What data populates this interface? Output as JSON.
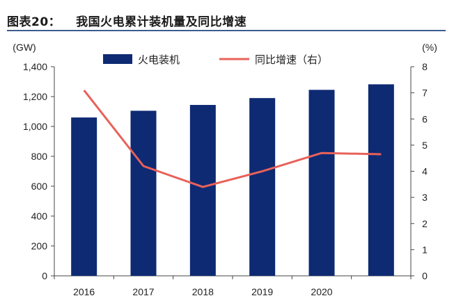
{
  "figure": {
    "label": "图表20：",
    "title": "我国火电累计装机量及同比增速"
  },
  "chart_data": {
    "type": "bar",
    "categories": [
      "2016",
      "2017",
      "2018",
      "2019",
      "2020",
      ""
    ],
    "series": [
      {
        "name": "火电装机",
        "kind": "bar",
        "axis": "left",
        "values": [
          1060,
          1105,
          1144,
          1190,
          1245,
          1282
        ]
      },
      {
        "name": "同比增速（右）",
        "kind": "line",
        "axis": "right",
        "values": [
          7.1,
          4.2,
          3.4,
          4.0,
          4.7,
          4.65
        ]
      }
    ],
    "ylabel_left": "(GW)",
    "ylabel_right": "(%)",
    "ylim_left": [
      0,
      1400
    ],
    "ylim_right": [
      0,
      8
    ],
    "yticks_left": [
      "0",
      "200",
      "400",
      "600",
      "800",
      "1,000",
      "1,200",
      "1,400"
    ],
    "yticks_right": [
      "0",
      "1",
      "2",
      "3",
      "4",
      "5",
      "6",
      "7",
      "8"
    ],
    "grid": false,
    "legend_position": "top",
    "colors": {
      "bar": "#0e2a73",
      "line": "#e8615a"
    }
  }
}
